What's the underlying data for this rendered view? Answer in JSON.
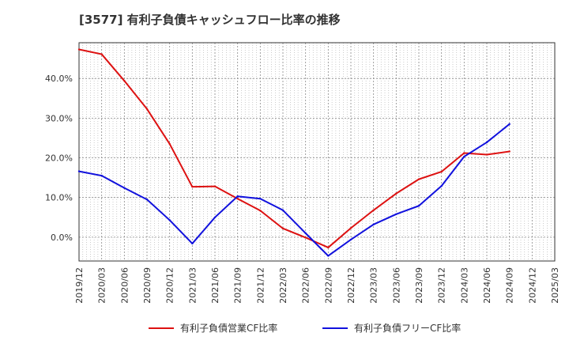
{
  "chart_data": {
    "type": "line",
    "title": "[3577]  有利子負債キャッシュフロー比率の推移",
    "xlabel": "",
    "ylabel": "",
    "x": [
      "2019/12",
      "2020/03",
      "2020/06",
      "2020/09",
      "2020/12",
      "2021/03",
      "2021/06",
      "2021/09",
      "2021/12",
      "2022/03",
      "2022/06",
      "2022/09",
      "2022/12",
      "2023/03",
      "2023/06",
      "2023/09",
      "2023/12",
      "2024/03",
      "2024/06",
      "2024/09",
      "2024/12",
      "2025/03"
    ],
    "ylim": [
      -6,
      49
    ],
    "yticks": [
      0,
      10,
      20,
      30,
      40
    ],
    "ytick_labels": [
      "0.0%",
      "10.0%",
      "20.0%",
      "30.0%",
      "40.0%"
    ],
    "grid": true,
    "legend_position": "bottom",
    "series": [
      {
        "name": "有利子負債営業CF比率",
        "color": "#dd1111",
        "values": [
          47.3,
          46.1,
          39.4,
          32.3,
          23.5,
          12.7,
          12.8,
          9.7,
          6.7,
          2.2,
          -0.1,
          -2.6,
          2.3,
          6.8,
          11.0,
          14.6,
          16.5,
          21.2,
          20.8,
          21.6,
          null,
          null
        ]
      },
      {
        "name": "有利子負債フリーCF比率",
        "color": "#1111dd",
        "values": [
          16.6,
          15.5,
          12.4,
          9.5,
          4.3,
          -1.6,
          5.0,
          10.3,
          9.7,
          6.8,
          1.0,
          -4.7,
          -0.6,
          3.2,
          5.8,
          7.9,
          12.9,
          20.3,
          23.9,
          28.5,
          null,
          null
        ]
      }
    ]
  }
}
